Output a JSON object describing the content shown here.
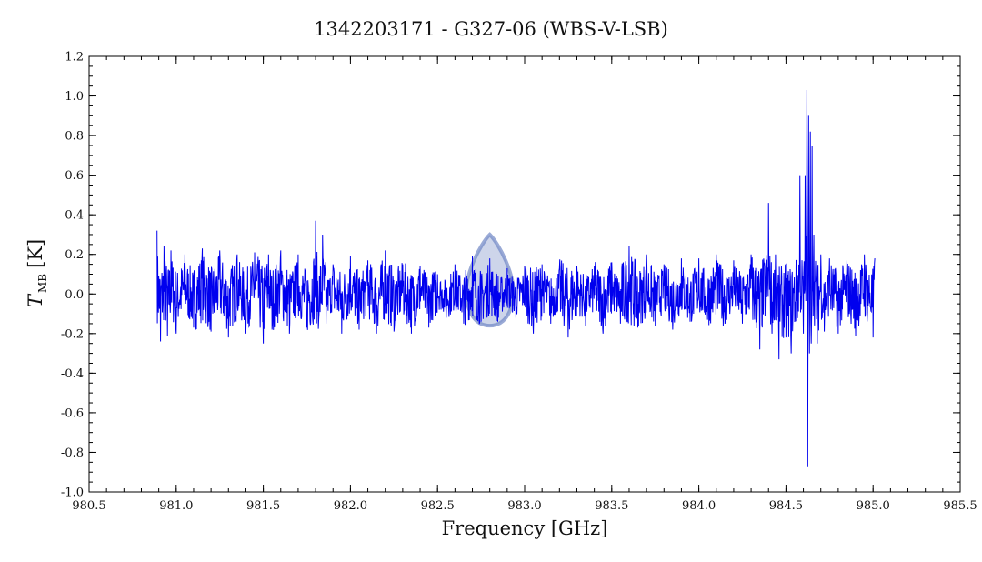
{
  "chart_data": {
    "type": "line",
    "title": "1342203171 - G327-06 (WBS-V-LSB)",
    "xlabel": "Frequency [GHz]",
    "ylabel_main": "T",
    "ylabel_sub": "MB",
    "ylabel_unit": "[K]",
    "xlim": [
      980.5,
      985.5
    ],
    "ylim": [
      -1.0,
      1.2
    ],
    "x_ticks": [
      "980.5",
      "981.0",
      "981.5",
      "982.0",
      "982.5",
      "983.0",
      "983.5",
      "984.0",
      "984.5",
      "985.0",
      "985.5"
    ],
    "y_ticks": [
      "-1.0",
      "-0.8",
      "-0.6",
      "-0.4",
      "-0.2",
      "0.0",
      "0.2",
      "0.4",
      "0.6",
      "0.8",
      "1.0",
      "1.2"
    ],
    "x_minor_step": 0.1,
    "y_minor_step": 0.05,
    "grid": false,
    "series": [
      {
        "color": "#0000ee",
        "x": [
          980.89,
          980.91,
          980.93,
          980.95,
          980.97,
          981.0,
          981.05,
          981.1,
          981.15,
          981.2,
          981.25,
          981.3,
          981.35,
          981.4,
          981.45,
          981.5,
          981.53,
          981.55,
          981.6,
          981.65,
          981.7,
          981.75,
          981.8,
          981.82,
          981.84,
          981.86,
          981.9,
          981.95,
          982.0,
          982.05,
          982.1,
          982.15,
          982.2,
          982.25,
          982.3,
          982.35,
          982.4,
          982.45,
          982.5,
          982.55,
          982.6,
          982.65,
          982.7,
          982.75,
          982.8,
          982.85,
          982.9,
          982.95,
          983.0,
          983.05,
          983.1,
          983.15,
          983.2,
          983.25,
          983.3,
          983.35,
          983.4,
          983.45,
          983.5,
          983.55,
          983.6,
          983.65,
          983.7,
          983.75,
          983.8,
          983.85,
          983.9,
          983.95,
          984.0,
          984.05,
          984.1,
          984.15,
          984.2,
          984.25,
          984.3,
          984.35,
          984.4,
          984.42,
          984.44,
          984.46,
          984.5,
          984.53,
          984.56,
          984.58,
          984.6,
          984.61,
          984.62,
          984.625,
          984.63,
          984.635,
          984.64,
          984.645,
          984.65,
          984.66,
          984.68,
          984.7,
          984.72,
          984.75,
          984.8,
          984.85,
          984.9,
          984.95,
          985.0,
          985.01
        ],
        "y": [
          0.32,
          -0.24,
          0.24,
          -0.21,
          0.22,
          -0.2,
          0.2,
          -0.17,
          0.23,
          -0.19,
          0.22,
          -0.22,
          0.2,
          -0.2,
          0.21,
          -0.25,
          0.2,
          -0.18,
          0.22,
          -0.2,
          0.2,
          -0.17,
          0.37,
          -0.1,
          0.3,
          -0.15,
          0.15,
          -0.2,
          0.19,
          -0.18,
          0.17,
          -0.2,
          0.22,
          -0.19,
          0.15,
          -0.2,
          0.14,
          -0.17,
          0.1,
          -0.12,
          0.15,
          -0.15,
          0.19,
          -0.14,
          0.18,
          -0.12,
          0.13,
          -0.12,
          0.14,
          -0.2,
          0.15,
          -0.15,
          0.13,
          -0.22,
          0.14,
          -0.16,
          0.14,
          -0.2,
          0.16,
          -0.15,
          0.24,
          -0.17,
          0.2,
          -0.16,
          0.15,
          -0.18,
          0.18,
          -0.14,
          0.18,
          -0.13,
          0.2,
          -0.15,
          0.17,
          -0.15,
          0.2,
          -0.28,
          0.46,
          -0.2,
          0.2,
          -0.33,
          -0.22,
          -0.3,
          0.0,
          0.6,
          -0.2,
          0.6,
          1.03,
          -0.87,
          0.9,
          -0.3,
          0.82,
          -0.25,
          0.75,
          0.3,
          -0.25,
          0.2,
          -0.19,
          0.18,
          -0.2,
          0.17,
          -0.21,
          0.2,
          -0.22,
          0.18
        ]
      }
    ],
    "highlight": {
      "center_x": 982.8,
      "top_y": 0.3,
      "bottom_y": -0.16,
      "half_width_x": 0.15,
      "color": "#6f86c4"
    }
  }
}
